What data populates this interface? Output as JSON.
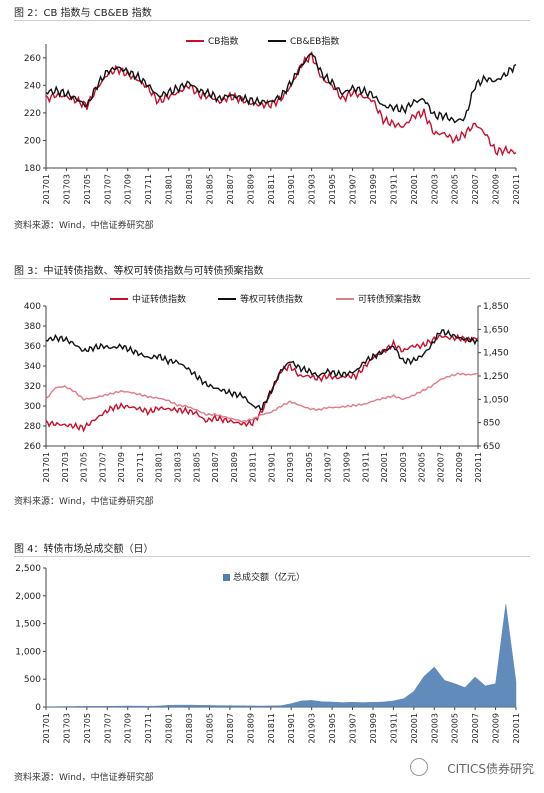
{
  "figures": [
    {
      "caption": "图 2：CB 指数与 CB&EB 指数",
      "source": "资料来源：Wind，中信证券研究部"
    },
    {
      "caption": "图 3：中证转债指数、等权可转债指数与可转债预案指数",
      "source": "资料来源：Wind，中信证券研究部"
    },
    {
      "caption": "图 4：转债市场总成交额（日）",
      "source": "资料来源：Wind，中信证券研究部"
    }
  ],
  "watermark": "CITICS债券研究",
  "months": [
    "201701",
    "201703",
    "201705",
    "201707",
    "201709",
    "201711",
    "201801",
    "201803",
    "201805",
    "201807",
    "201809",
    "201811",
    "201901",
    "201903",
    "201905",
    "201907",
    "201909",
    "201911",
    "202001",
    "202003",
    "202005",
    "202007",
    "202009",
    "202011"
  ],
  "months_all": [
    "201701",
    "201702",
    "201703",
    "201704",
    "201705",
    "201706",
    "201707",
    "201708",
    "201709",
    "201710",
    "201711",
    "201712",
    "201801",
    "201802",
    "201803",
    "201804",
    "201805",
    "201806",
    "201807",
    "201808",
    "201809",
    "201810",
    "201811",
    "201812",
    "201901",
    "201902",
    "201903",
    "201904",
    "201905",
    "201906",
    "201907",
    "201908",
    "201909",
    "201910",
    "201911",
    "201912",
    "202001",
    "202002",
    "202003",
    "202004",
    "202005",
    "202006",
    "202007",
    "202008",
    "202009",
    "202010",
    "202011"
  ],
  "chart_data": [
    {
      "type": "line",
      "ylim": [
        180,
        270
      ],
      "yticks": [
        "180",
        "200",
        "220",
        "240",
        "260"
      ],
      "legend_position": "top-center",
      "x": [
        "201701",
        "201702",
        "201703",
        "201704",
        "201705",
        "201706",
        "201707",
        "201708",
        "201709",
        "201710",
        "201711",
        "201712",
        "201801",
        "201802",
        "201803",
        "201804",
        "201805",
        "201806",
        "201807",
        "201808",
        "201809",
        "201810",
        "201811",
        "201812",
        "201901",
        "201902",
        "201903",
        "201904",
        "201905",
        "201906",
        "201907",
        "201908",
        "201909",
        "201910",
        "201911",
        "201912",
        "202001",
        "202002",
        "202003",
        "202004",
        "202005",
        "202006",
        "202007",
        "202008",
        "202009",
        "202010",
        "202011"
      ],
      "series": [
        {
          "name": "CB指数",
          "color": "#c8102e",
          "values": [
            230,
            233,
            232,
            229,
            225,
            238,
            248,
            252,
            248,
            244,
            238,
            228,
            232,
            235,
            240,
            233,
            232,
            228,
            232,
            230,
            227,
            226,
            226,
            230,
            240,
            255,
            262,
            245,
            240,
            230,
            235,
            232,
            229,
            215,
            212,
            210,
            218,
            220,
            205,
            205,
            200,
            205,
            212,
            205,
            192,
            193,
            191
          ]
        },
        {
          "name": "CB&EB指数",
          "color": "#111111",
          "values": [
            235,
            236,
            234,
            230,
            225,
            240,
            250,
            253,
            250,
            246,
            240,
            232,
            235,
            238,
            242,
            236,
            234,
            230,
            233,
            231,
            229,
            228,
            228,
            232,
            242,
            254,
            264,
            248,
            242,
            234,
            238,
            236,
            233,
            225,
            224,
            222,
            228,
            230,
            218,
            218,
            214,
            216,
            240,
            245,
            243,
            248,
            255
          ]
        }
      ]
    },
    {
      "type": "line",
      "ylim": [
        260,
        400
      ],
      "yticks": [
        "260",
        "280",
        "300",
        "320",
        "340",
        "360",
        "380",
        "400"
      ],
      "y2lim": [
        650,
        1850
      ],
      "y2ticks": [
        "650",
        "850",
        "1,050",
        "1,250",
        "1,450",
        "1,650",
        "1,850"
      ],
      "legend_position": "top",
      "x": [
        "201701",
        "201702",
        "201703",
        "201704",
        "201705",
        "201706",
        "201707",
        "201708",
        "201709",
        "201710",
        "201711",
        "201712",
        "201801",
        "201802",
        "201803",
        "201804",
        "201805",
        "201806",
        "201807",
        "201808",
        "201809",
        "201810",
        "201811",
        "201812",
        "201901",
        "201902",
        "201903",
        "201904",
        "201905",
        "201906",
        "201907",
        "201908",
        "201909",
        "201910",
        "201911",
        "201912",
        "202001",
        "202002",
        "202003",
        "202004",
        "202005",
        "202006",
        "202007",
        "202008",
        "202009",
        "202010",
        "202011"
      ],
      "series": [
        {
          "name": "中证转债指数",
          "color": "#c8102e",
          "axis": "left",
          "values": [
            283,
            282,
            281,
            280,
            278,
            285,
            292,
            298,
            300,
            299,
            297,
            294,
            298,
            297,
            296,
            295,
            293,
            285,
            288,
            286,
            284,
            282,
            283,
            295,
            315,
            335,
            340,
            330,
            330,
            327,
            330,
            328,
            330,
            330,
            340,
            350,
            355,
            362,
            355,
            360,
            360,
            365,
            370,
            368,
            368,
            366,
            368
          ]
        },
        {
          "name": "等权可转债指数",
          "color": "#111111",
          "axis": "left",
          "values": [
            366,
            368,
            367,
            362,
            355,
            358,
            360,
            358,
            360,
            356,
            352,
            348,
            350,
            345,
            344,
            338,
            330,
            322,
            318,
            315,
            312,
            310,
            300,
            298,
            315,
            335,
            345,
            338,
            335,
            330,
            335,
            332,
            332,
            335,
            345,
            350,
            355,
            360,
            345,
            345,
            350,
            360,
            375,
            372,
            368,
            366,
            365
          ]
        },
        {
          "name": "可转债预案指数",
          "color": "#e07b8a",
          "axis": "right",
          "values": [
            1050,
            1150,
            1160,
            1120,
            1050,
            1060,
            1080,
            1100,
            1120,
            1110,
            1090,
            1070,
            1060,
            1040,
            1000,
            990,
            960,
            920,
            920,
            900,
            880,
            860,
            880,
            920,
            940,
            990,
            1030,
            1000,
            970,
            960,
            980,
            980,
            990,
            1000,
            1010,
            1040,
            1060,
            1080,
            1050,
            1080,
            1120,
            1160,
            1220,
            1250,
            1270,
            1260,
            1270
          ]
        }
      ]
    },
    {
      "type": "area",
      "ylim": [
        0,
        2500
      ],
      "yticks": [
        "0",
        "500",
        "1,000",
        "1,500",
        "2,000",
        "2,500"
      ],
      "legend_position": "top-center",
      "x": [
        "201701",
        "201702",
        "201703",
        "201704",
        "201705",
        "201706",
        "201707",
        "201708",
        "201709",
        "201710",
        "201711",
        "201712",
        "201801",
        "201802",
        "201803",
        "201804",
        "201805",
        "201806",
        "201807",
        "201808",
        "201809",
        "201810",
        "201811",
        "201812",
        "201901",
        "201902",
        "201903",
        "201904",
        "201905",
        "201906",
        "201907",
        "201908",
        "201909",
        "201910",
        "201911",
        "201912",
        "202001",
        "202002",
        "202003",
        "202004",
        "202005",
        "202006",
        "202007",
        "202008",
        "202009",
        "202010",
        "202011"
      ],
      "series": [
        {
          "name": "总成交额（亿元）",
          "color": "#4f7fb3",
          "values": [
            5,
            6,
            8,
            10,
            12,
            10,
            12,
            15,
            18,
            16,
            15,
            18,
            30,
            35,
            35,
            30,
            28,
            25,
            25,
            22,
            20,
            18,
            20,
            25,
            60,
            110,
            120,
            95,
            90,
            80,
            85,
            80,
            85,
            90,
            110,
            150,
            280,
            550,
            720,
            480,
            420,
            350,
            540,
            380,
            420,
            1850,
            450
          ]
        }
      ]
    }
  ]
}
